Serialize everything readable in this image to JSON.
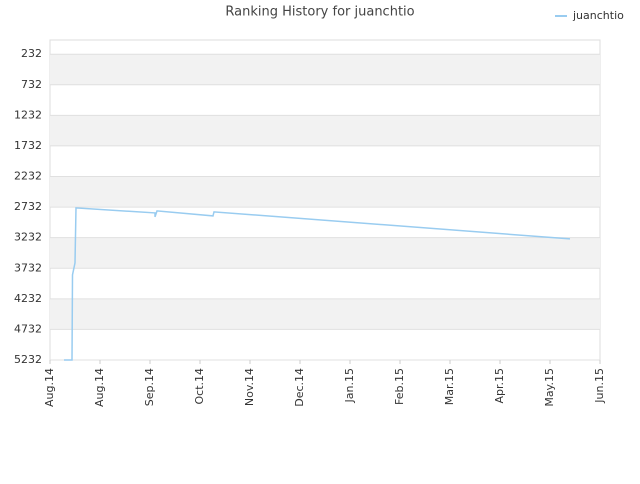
{
  "chart_data": {
    "type": "line",
    "title": "Ranking History for juanchtio",
    "x": [
      0.28,
      0.44,
      0.45,
      0.5,
      0.52,
      2.1,
      2.1,
      2.14,
      3.26,
      3.28,
      10.4
    ],
    "series": [
      {
        "name": "juanchtio",
        "color": "#99ccf0",
        "values": [
          5232,
          5232,
          3840,
          3644,
          2745,
          2827,
          2892,
          2794,
          2876,
          2810,
          3252
        ]
      }
    ],
    "xlim": [
      0,
      11
    ],
    "xticks": [
      {
        "value": 0,
        "label": "Aug.14"
      },
      {
        "value": 1,
        "label": "Aug.14"
      },
      {
        "value": 2,
        "label": "Sep.14"
      },
      {
        "value": 3,
        "label": "Oct.14"
      },
      {
        "value": 4,
        "label": "Nov.14"
      },
      {
        "value": 5,
        "label": "Dec.14"
      },
      {
        "value": 6,
        "label": "Jan.15"
      },
      {
        "value": 7,
        "label": "Feb.15"
      },
      {
        "value": 8,
        "label": "Mar.15"
      },
      {
        "value": 9,
        "label": "Apr.15"
      },
      {
        "value": 10,
        "label": "May.15"
      },
      {
        "value": 11,
        "label": "Jun.15"
      }
    ],
    "ylim": [
      5232,
      0
    ],
    "yticks": [
      232,
      732,
      1232,
      1732,
      2232,
      2732,
      3232,
      3732,
      4232,
      4732,
      5232
    ],
    "grid": true,
    "legend": "top-right"
  }
}
